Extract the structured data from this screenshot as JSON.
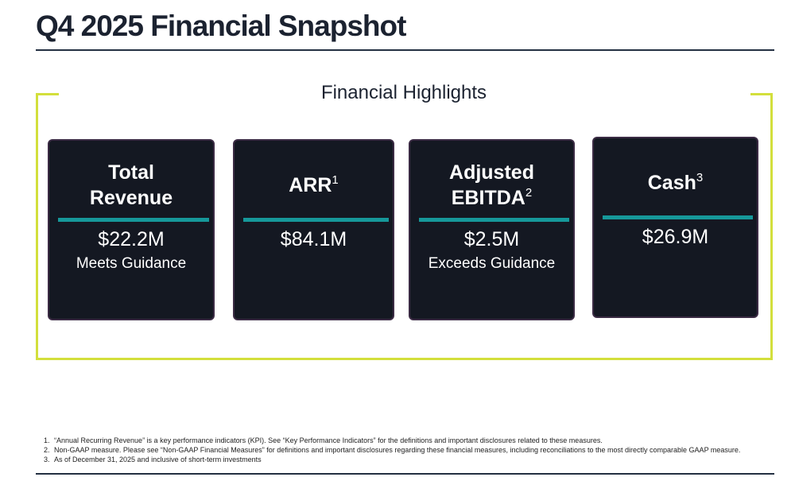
{
  "header": {
    "title": "Q4 2025 Financial Snapshot"
  },
  "section": {
    "title": "Financial Highlights"
  },
  "cards": [
    {
      "title": "Total Revenue",
      "value": "$22.2M",
      "note": "Meets Guidance"
    },
    {
      "title": "ARR",
      "sup": "1",
      "value": "$84.1M"
    },
    {
      "title": "Adjusted EBITDA",
      "sup": "2",
      "value": "$2.5M",
      "note": "Exceeds Guidance"
    },
    {
      "title": "Cash",
      "sup": "3",
      "value": "$26.9M"
    }
  ],
  "footnotes": [
    {
      "marker": "1.",
      "text": "“Annual Recurring Revenue” is a key performance indicators (KPI).  See “Key Performance Indicators” for the definitions and important disclosures related to these measures."
    },
    {
      "marker": "2.",
      "text": "Non-GAAP measure. Please see “Non-GAAP Financial Measures” for definitions and important disclosures regarding these financial measures, including reconciliations to the most directly comparable GAAP measure."
    },
    {
      "marker": "3.",
      "text": "As of December 31, 2025 and inclusive of short-term investments"
    }
  ]
}
